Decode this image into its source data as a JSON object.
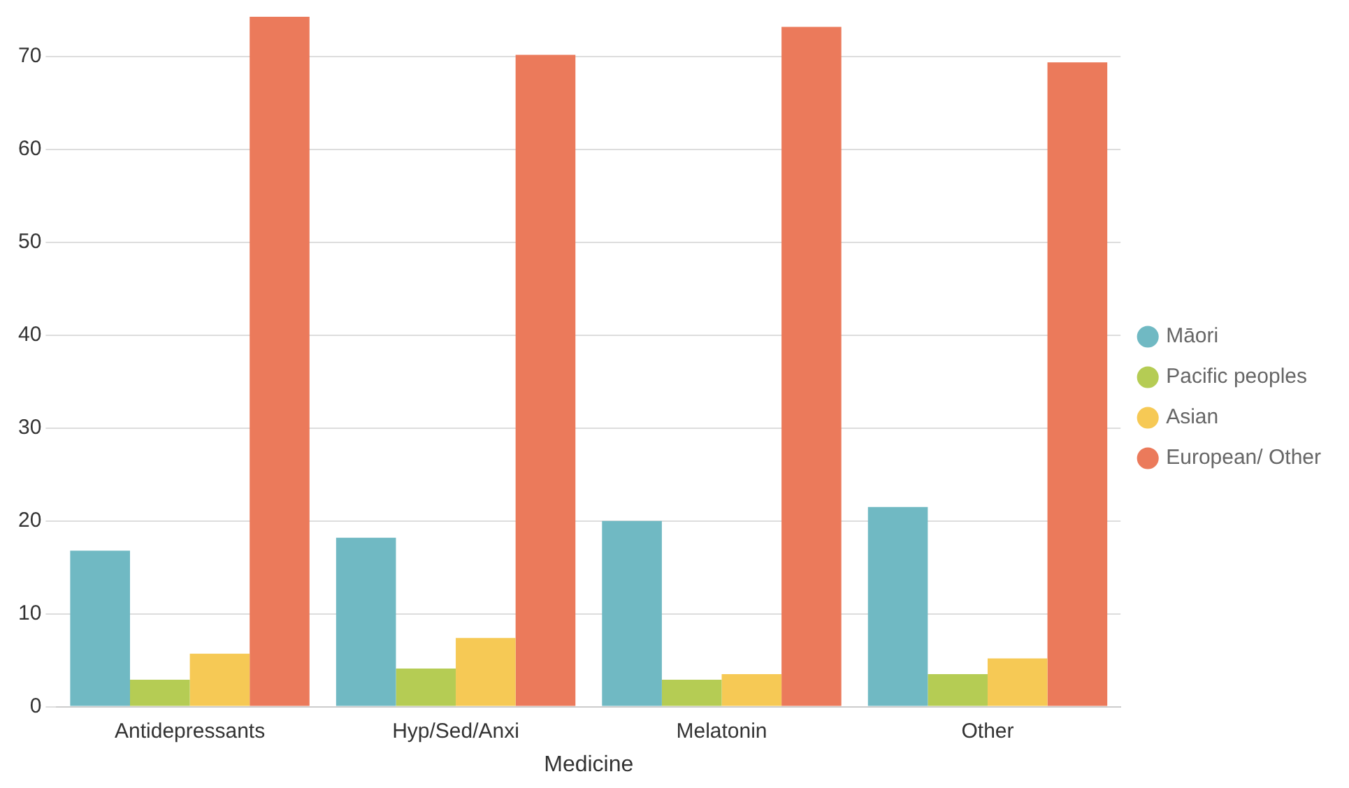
{
  "chart_data": {
    "type": "bar",
    "xlabel": "Medicine",
    "categories": [
      "Antidepressants",
      "Hyp/Sed/Anxi",
      "Melatonin",
      "Other"
    ],
    "series": [
      {
        "name": "Māori",
        "color": "#70b9c3",
        "values": [
          16.8,
          18.2,
          20.0,
          21.5
        ]
      },
      {
        "name": "Pacific peoples",
        "color": "#b5cc54",
        "values": [
          2.9,
          4.1,
          2.9,
          3.5
        ]
      },
      {
        "name": "Asian",
        "color": "#f6c955",
        "values": [
          5.7,
          7.4,
          3.5,
          5.2
        ]
      },
      {
        "name": "European/ Other",
        "color": "#eb7a5b",
        "values": [
          74.3,
          70.2,
          73.2,
          69.4
        ]
      }
    ],
    "ylim": [
      0,
      74.3
    ],
    "yticks": [
      0,
      10,
      20,
      30,
      40,
      50,
      60,
      70
    ],
    "grid": "y",
    "legend": "right"
  }
}
